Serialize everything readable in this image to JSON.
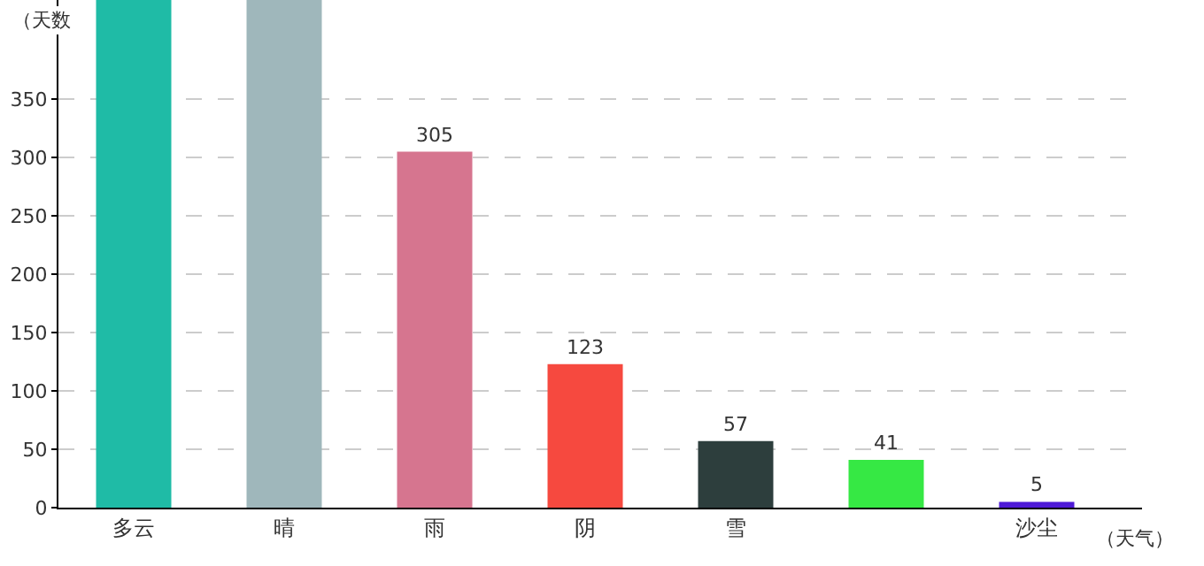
{
  "chart_data": {
    "type": "bar",
    "xlabel": "（天气）",
    "ylabel": "（天数",
    "categories": [
      "多云",
      "晴",
      "雨",
      "阴",
      "雪",
      null,
      "沙尘"
    ],
    "values": [
      435,
      435,
      305,
      123,
      57,
      41,
      5
    ],
    "colors": [
      "#1fbba6",
      "#9fb7bb",
      "#d6758f",
      "#f6493f",
      "#2d3e3d",
      "#36e844",
      "#4e1ad6"
    ],
    "value_labels": [
      null,
      null,
      "305",
      "123",
      "57",
      "41",
      "5"
    ],
    "ylim": [
      0,
      435
    ],
    "yticks": [
      0,
      50,
      100,
      150,
      200,
      250,
      300,
      350
    ],
    "grid": "y"
  }
}
